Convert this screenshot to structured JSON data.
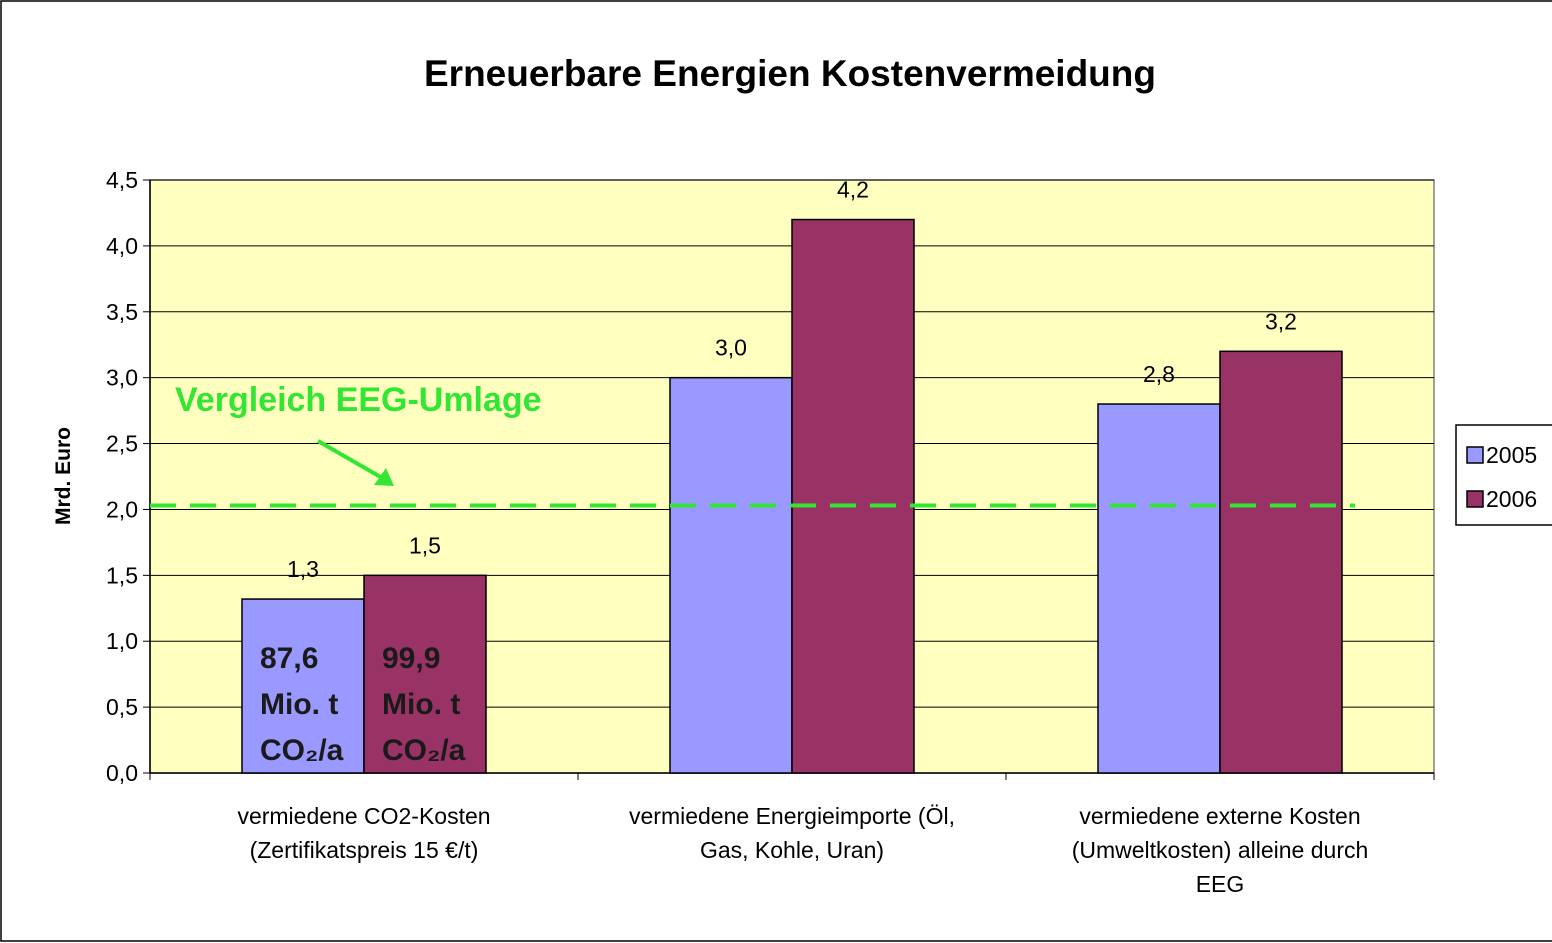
{
  "chart_data": {
    "type": "bar",
    "title": "Erneuerbare Energien Kostenvermeidung",
    "y_label": "Mrd. Euro",
    "categories": [
      "vermiedene CO2-Kosten\n(Zertifikatspreis 15 €/t)",
      "vermiedene Energieimporte (Öl,\nGas, Kohle, Uran)",
      "vermiedene externe Kosten\n(Umweltkosten) alleine durch\nEEG"
    ],
    "series": [
      {
        "name": "2005",
        "color": "#9999ff",
        "values": [
          1.32,
          3.0,
          2.8
        ],
        "value_labels": [
          "1,3",
          "3,0",
          "2,8"
        ]
      },
      {
        "name": "2006",
        "color": "#993366",
        "values": [
          1.5,
          4.2,
          3.2
        ],
        "value_labels": [
          "1,5",
          "4,2",
          "3,2"
        ]
      }
    ],
    "ylim": [
      0,
      4.5
    ],
    "yticks": [
      {
        "value": 0,
        "label": "0,0"
      },
      {
        "value": 0.5,
        "label": "0,5"
      },
      {
        "value": 1,
        "label": "1,0"
      },
      {
        "value": 1.5,
        "label": "1,5"
      },
      {
        "value": 2,
        "label": "2,0"
      },
      {
        "value": 2.5,
        "label": "2,5"
      },
      {
        "value": 3,
        "label": "3,0"
      },
      {
        "value": 3.5,
        "label": "3,5"
      },
      {
        "value": 4,
        "label": "4,0"
      },
      {
        "value": 4.5,
        "label": "4,5"
      }
    ],
    "grid": true,
    "legend": "right",
    "background": "#ffffc0",
    "reference_line": {
      "value": 2.03,
      "label": "Vergleich EEG-Umlage",
      "color": "#33e633"
    },
    "bar_annotations": [
      {
        "series": 0,
        "category": 0,
        "lines": [
          "87,6",
          "Mio. t",
          "CO₂/a"
        ]
      },
      {
        "series": 1,
        "category": 0,
        "lines": [
          "99,9",
          "Mio. t",
          "CO₂/a"
        ]
      }
    ]
  }
}
